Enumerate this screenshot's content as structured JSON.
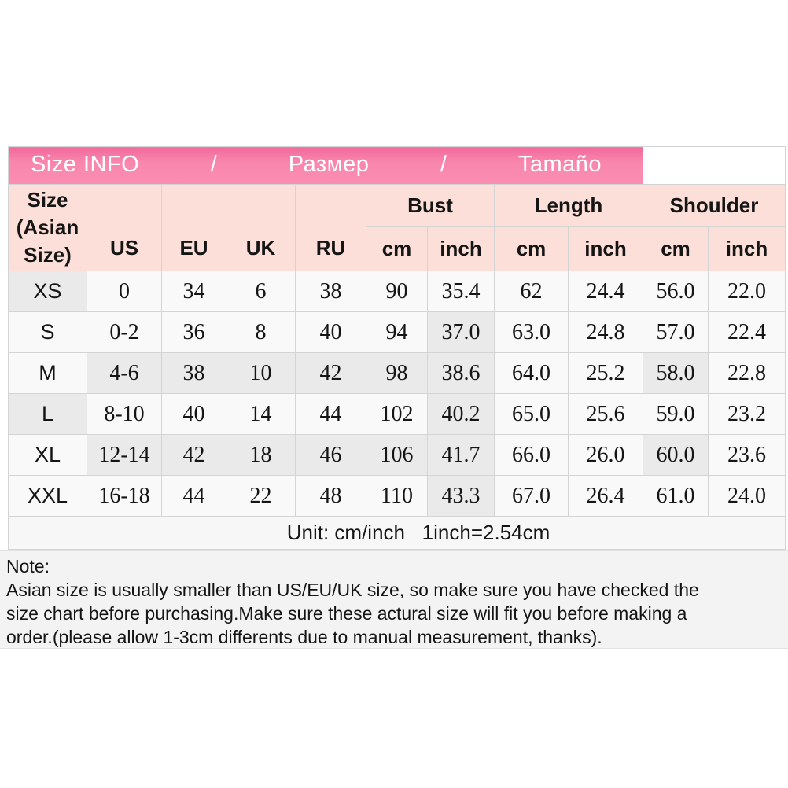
{
  "banner": {
    "items": [
      "Size INFO",
      "/",
      "Размер",
      "/",
      "Tamaño"
    ]
  },
  "table": {
    "corner_label": "Size (Asian Size)",
    "region_cols": [
      "US",
      "EU",
      "UK",
      "RU"
    ],
    "groups": [
      "Bust",
      "Length",
      "Shoulder"
    ],
    "sub_cols": [
      "cm",
      "inch",
      "cm",
      "inch",
      "cm",
      "inch"
    ],
    "rows": [
      {
        "size": "XS",
        "values": [
          "0",
          "34",
          "6",
          "38",
          "90",
          "35.4",
          "62",
          "24.4",
          "56.0",
          "22.0"
        ],
        "shaded": [
          0
        ]
      },
      {
        "size": "S",
        "values": [
          "0-2",
          "36",
          "8",
          "40",
          "94",
          "37.0",
          "63.0",
          "24.8",
          "57.0",
          "22.4"
        ],
        "shaded": [
          6
        ]
      },
      {
        "size": "M",
        "values": [
          "4-6",
          "38",
          "10",
          "42",
          "98",
          "38.6",
          "64.0",
          "25.2",
          "58.0",
          "22.8"
        ],
        "shaded": [
          1,
          2,
          3,
          4,
          5,
          6,
          9
        ]
      },
      {
        "size": "L",
        "values": [
          "8-10",
          "40",
          "14",
          "44",
          "102",
          "40.2",
          "65.0",
          "25.6",
          "59.0",
          "23.2"
        ],
        "shaded": [
          0,
          6
        ]
      },
      {
        "size": "XL",
        "values": [
          "12-14",
          "42",
          "18",
          "46",
          "106",
          "41.7",
          "66.0",
          "26.0",
          "60.0",
          "23.6"
        ],
        "shaded": [
          1,
          2,
          3,
          4,
          5,
          6,
          9
        ]
      },
      {
        "size": "XXL",
        "values": [
          "16-18",
          "44",
          "22",
          "48",
          "110",
          "43.3",
          "67.0",
          "26.4",
          "61.0",
          "24.0"
        ],
        "shaded": [
          6
        ]
      }
    ],
    "unit_note": "Unit: cm/inch   1inch=2.54cm"
  },
  "note": {
    "title": "Note:",
    "lines": [
      "Asian size is usually smaller than US/EU/UK size, so make sure you have checked the",
      "size chart before purchasing.Make sure these actural size will fit you before making a",
      "order.(please allow 1-3cm differents due to manual measurement, thanks)."
    ]
  },
  "colors": {
    "banner_pink": "#f987ad",
    "header_pink": "#fcdfd8",
    "banner_text": "#ffffff",
    "cell_bg": "#f9f9f9",
    "cell_shaded_bg": "#eaeaea",
    "border": "#d4d4d4",
    "text": "#151515",
    "note_bg": "#f3f3f3"
  }
}
